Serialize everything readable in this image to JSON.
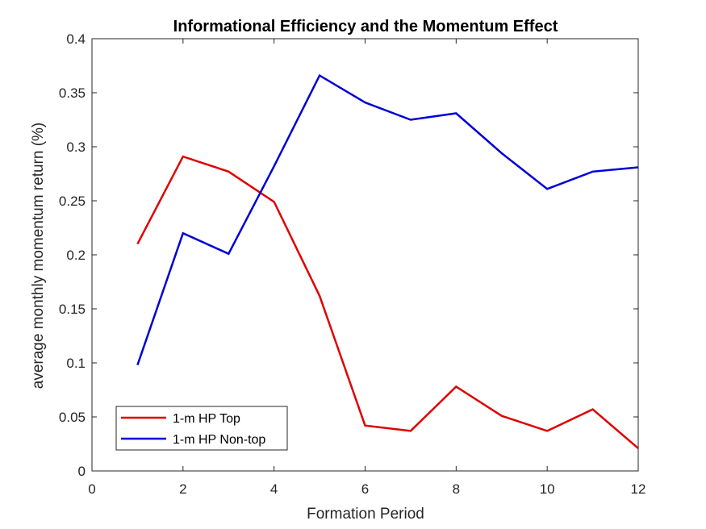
{
  "chart_data": {
    "type": "line",
    "title": "Informational Efficiency and the Momentum Effect",
    "xlabel": "Formation Period",
    "ylabel": "average monthly momentum return (%)",
    "xlim": [
      0,
      12
    ],
    "ylim": [
      0,
      0.4
    ],
    "xticks": [
      0,
      2,
      4,
      6,
      8,
      10,
      12
    ],
    "yticks": [
      0,
      0.05,
      0.1,
      0.15,
      0.2,
      0.25,
      0.3,
      0.35,
      0.4
    ],
    "grid": false,
    "legend_position": "bottom-left",
    "x": [
      1,
      2,
      3,
      4,
      5,
      6,
      7,
      8,
      9,
      10,
      11,
      12
    ],
    "series": [
      {
        "name": "1-m HP Top",
        "color": "#e00000",
        "values": [
          0.21,
          0.291,
          0.277,
          0.249,
          0.162,
          0.042,
          0.037,
          0.078,
          0.051,
          0.037,
          0.057,
          0.021
        ]
      },
      {
        "name": "1-m HP Non-top",
        "color": "#0000d8",
        "values": [
          0.098,
          0.22,
          0.201,
          0.282,
          0.366,
          0.341,
          0.325,
          0.331,
          0.294,
          0.261,
          0.277,
          0.281
        ]
      }
    ]
  }
}
